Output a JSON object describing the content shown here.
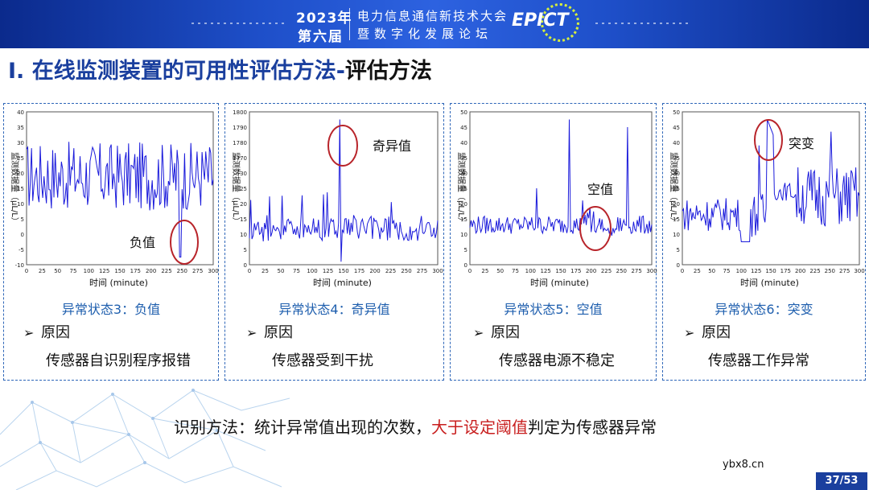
{
  "banner": {
    "year": "2023年",
    "edition": "第六届",
    "line1": "电力信息通信新技术大会",
    "line2": "暨数字化发展论坛",
    "logo": "EPICT"
  },
  "title": {
    "main": "I. 在线监测装置的可用性评估方法-",
    "suffix": "评估方法"
  },
  "panels": [
    {
      "state": "异常状态3：负值",
      "reason_label": "原因",
      "cause": "传感器自识别程序报错",
      "annotation": "负值",
      "xlabel": "时间 (minute)",
      "ylabel": "监测数据量（μL/L）",
      "yticks": [
        "40",
        "35",
        "30",
        "25",
        "20",
        "15",
        "10",
        "5",
        "0",
        "-5",
        "-10"
      ],
      "xticks": [
        "0",
        "25",
        "50",
        "75",
        "100",
        "125",
        "150",
        "175",
        "200",
        "225",
        "250",
        "275",
        "300"
      ]
    },
    {
      "state": "异常状态4：奇异值",
      "reason_label": "原因",
      "cause": "传感器受到干扰",
      "annotation": "奇异值",
      "xlabel": "时间 (minute)",
      "ylabel": "监测数据量（μL/L）",
      "yticks": [
        "1800",
        "1790",
        "1780",
        "1770",
        "30",
        "25",
        "20",
        "15",
        "10",
        "5",
        "0"
      ],
      "xticks": [
        "0",
        "25",
        "50",
        "75",
        "100",
        "125",
        "150",
        "175",
        "200",
        "225",
        "250",
        "275",
        "300"
      ]
    },
    {
      "state": "异常状态5：空值",
      "reason_label": "原因",
      "cause": "传感器电源不稳定",
      "annotation": "空值",
      "xlabel": "时间 (minute)",
      "ylabel": "监测数据量（μL/L）",
      "yticks": [
        "50",
        "45",
        "40",
        "35",
        "30",
        "25",
        "20",
        "15",
        "10",
        "5",
        "0"
      ],
      "xticks": [
        "0",
        "25",
        "50",
        "75",
        "100",
        "125",
        "150",
        "175",
        "200",
        "225",
        "250",
        "275",
        "300"
      ]
    },
    {
      "state": "异常状态6：突变",
      "reason_label": "原因",
      "cause": "传感器工作异常",
      "annotation": "突变",
      "xlabel": "时间 (minute)",
      "ylabel": "监测数据量（μL/L）",
      "yticks": [
        "50",
        "45",
        "40",
        "35",
        "30",
        "25",
        "20",
        "15",
        "10",
        "5",
        "0"
      ],
      "xticks": [
        "0",
        "25",
        "50",
        "75",
        "100",
        "125",
        "150",
        "175",
        "200",
        "225",
        "250",
        "275",
        "300"
      ]
    }
  ],
  "bottom": {
    "prefix": "识别方法：统计异常值出现的次数，",
    "highlight": "大于设定阈值",
    "suffix": "判定为传感器异常"
  },
  "watermark": "ybx8.cn",
  "page_number": "37/53",
  "colors": {
    "title_blue": "#1a3f9e",
    "line_blue": "#1a1adb",
    "circle_red": "#b8242a",
    "highlight_red": "#c81e1e",
    "state_blue": "#1f5fae"
  }
}
